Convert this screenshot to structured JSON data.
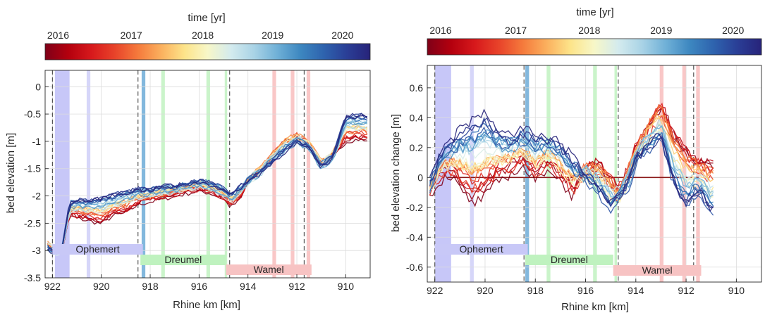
{
  "colorbar": {
    "label": "time [yr]",
    "ticks": [
      "2016",
      "2017",
      "2018",
      "2019",
      "2020"
    ],
    "colors": [
      "#7f0018",
      "#b4000e",
      "#d7191c",
      "#e8432a",
      "#f57a3c",
      "#fbb05e",
      "#fde48a",
      "#f7f7c8",
      "#d4ebee",
      "#a9d3e6",
      "#6fb0d7",
      "#3d87c0",
      "#2e63ae",
      "#2a3e96",
      "#27237a"
    ]
  },
  "chart_data": [
    {
      "type": "line",
      "colorbar_label": "time [yr]",
      "xlabel": "Rhine km [km]",
      "ylabel": "bed elevation [m]",
      "xlim": [
        922.3,
        909.0
      ],
      "ylim": [
        -3.5,
        0.3
      ],
      "xticks": [
        "922",
        "920",
        "918",
        "916",
        "914",
        "912",
        "910"
      ],
      "yticks": [
        "0",
        "-0.5",
        "-1",
        "-1.5",
        "-2",
        "-2.5",
        "-3",
        "-3.5"
      ],
      "grid": true,
      "series_note_years": [
        2016,
        2017,
        2018,
        2019,
        2020
      ],
      "profile_early": {
        "x": [
          922.2,
          921.9,
          921.6,
          921.3,
          921.0,
          920.5,
          920.0,
          919.5,
          919.0,
          918.5,
          918.0,
          917.5,
          917.0,
          916.5,
          916.0,
          915.5,
          915.0,
          914.7,
          914.3,
          914.0,
          913.5,
          913.0,
          912.5,
          912.0,
          911.5,
          911.0,
          910.5,
          910.0,
          909.5,
          909.1
        ],
        "y": [
          -2.85,
          -3.0,
          -2.95,
          -2.3,
          -2.35,
          -2.4,
          -2.45,
          -2.3,
          -2.25,
          -2.1,
          -2.05,
          -2.0,
          -1.95,
          -1.9,
          -1.85,
          -1.9,
          -2.0,
          -2.15,
          -2.0,
          -1.7,
          -1.5,
          -1.2,
          -0.95,
          -0.85,
          -1.0,
          -1.35,
          -1.2,
          -0.95,
          -0.9,
          -0.95
        ]
      },
      "profile_late": {
        "x": [
          922.2,
          921.9,
          921.6,
          921.3,
          921.0,
          920.5,
          920.0,
          919.5,
          919.0,
          918.5,
          918.0,
          917.5,
          917.0,
          916.5,
          916.0,
          915.5,
          915.0,
          914.7,
          914.3,
          914.0,
          913.5,
          913.0,
          912.5,
          912.0,
          911.5,
          911.0,
          910.5,
          910.0
        ],
        "y": [
          -3.0,
          -3.05,
          -2.95,
          -2.15,
          -2.1,
          -2.1,
          -2.05,
          -2.0,
          -1.95,
          -1.9,
          -1.9,
          -1.85,
          -1.85,
          -1.8,
          -1.75,
          -1.8,
          -1.9,
          -2.0,
          -1.85,
          -1.75,
          -1.6,
          -1.4,
          -1.2,
          -1.05,
          -1.15,
          -1.5,
          -1.3,
          -0.55
        ]
      },
      "vertical_bands": [
        {
          "x0": 921.9,
          "x1": 921.3,
          "color": "#b4b4f5"
        },
        {
          "x0": 920.6,
          "x1": 920.45,
          "color": "#c8c8f7"
        },
        {
          "x0": 918.35,
          "x1": 918.2,
          "color": "#5aa0d2"
        },
        {
          "x0": 917.55,
          "x1": 917.4,
          "color": "#b8f0b8"
        },
        {
          "x0": 915.7,
          "x1": 915.55,
          "color": "#b8f0b8"
        },
        {
          "x0": 914.95,
          "x1": 914.85,
          "color": "#b8f0b8"
        },
        {
          "x0": 913.0,
          "x1": 912.85,
          "color": "#f7b4b4"
        },
        {
          "x0": 912.25,
          "x1": 912.1,
          "color": "#f7b4b4"
        },
        {
          "x0": 911.6,
          "x1": 911.45,
          "color": "#f7b4b4"
        }
      ],
      "dashed_lines": [
        922.0,
        918.5,
        914.75,
        911.7
      ],
      "reaches": [
        {
          "label": "Ophemert",
          "x0": 922.0,
          "x1": 918.3,
          "row": 1,
          "color": "#c8c8f7"
        },
        {
          "label": "Dreumel",
          "x0": 918.4,
          "x1": 914.9,
          "row": 2,
          "color": "#bff2bf"
        },
        {
          "label": "Wamel",
          "x0": 914.9,
          "x1": 911.4,
          "row": 3,
          "color": "#f7c3c3"
        }
      ]
    },
    {
      "type": "line",
      "colorbar_label": "time [yr]",
      "xlabel": "Rhine km [km]",
      "ylabel": "bed elevation change [m]",
      "xlim": [
        922.3,
        909.0
      ],
      "ylim": [
        -0.7,
        0.75
      ],
      "xticks": [
        "922",
        "920",
        "918",
        "916",
        "914",
        "912",
        "910"
      ],
      "yticks": [
        "0.6",
        "0.4",
        "0.2",
        "0",
        "-0.2",
        "-0.4",
        "-0.6"
      ],
      "grid": true,
      "profile_early": {
        "x": [
          922.2,
          921.8,
          921.4,
          921.0,
          920.5,
          920.0,
          919.5,
          919.0,
          918.5,
          918.0,
          917.5,
          917.0,
          916.5,
          916.0,
          915.5,
          915.0,
          914.7,
          914.3,
          914.0,
          913.5,
          913.0,
          912.5,
          912.0,
          911.5,
          911.0
        ],
        "y": [
          -0.1,
          0.0,
          0.05,
          -0.05,
          -0.15,
          -0.1,
          0.0,
          0.05,
          0.1,
          0.0,
          0.1,
          0.0,
          -0.1,
          0.05,
          0.1,
          0.0,
          -0.1,
          0.05,
          0.2,
          0.35,
          0.5,
          0.3,
          0.2,
          0.1,
          0.1
        ]
      },
      "profile_late": {
        "x": [
          922.2,
          921.8,
          921.4,
          921.0,
          920.5,
          920.0,
          919.5,
          919.0,
          918.5,
          918.0,
          917.5,
          917.0,
          916.5,
          916.0,
          915.5,
          915.0,
          914.7,
          914.3,
          914.0,
          913.5,
          913.0,
          912.5,
          912.0,
          911.5,
          911.0
        ],
        "y": [
          -0.05,
          0.15,
          0.2,
          0.3,
          0.35,
          0.4,
          0.3,
          0.25,
          0.3,
          0.25,
          0.25,
          0.2,
          0.1,
          0.0,
          -0.1,
          -0.2,
          -0.15,
          -0.05,
          0.1,
          0.2,
          0.25,
          -0.05,
          -0.2,
          -0.1,
          -0.25
        ]
      },
      "zero_line": {
        "x0": 921.5,
        "x1": 911.5,
        "y": 0,
        "color": "#8b1a1a"
      },
      "vertical_bands": [
        {
          "x0": 922.0,
          "x1": 921.35,
          "color": "#b4b4f5"
        },
        {
          "x0": 920.6,
          "x1": 920.45,
          "color": "#c8c8f7"
        },
        {
          "x0": 918.4,
          "x1": 918.25,
          "color": "#5aa0d2"
        },
        {
          "x0": 917.55,
          "x1": 917.4,
          "color": "#b8f0b8"
        },
        {
          "x0": 915.7,
          "x1": 915.55,
          "color": "#b8f0b8"
        },
        {
          "x0": 914.85,
          "x1": 914.75,
          "color": "#b8f0b8"
        },
        {
          "x0": 913.05,
          "x1": 912.9,
          "color": "#f7b4b4"
        },
        {
          "x0": 912.15,
          "x1": 912.0,
          "color": "#f7b4b4"
        },
        {
          "x0": 911.6,
          "x1": 911.45,
          "color": "#f7b4b4"
        }
      ],
      "dashed_lines": [
        922.0,
        918.45,
        914.7,
        911.7
      ],
      "reaches": [
        {
          "label": "Ophemert",
          "x0": 922.0,
          "x1": 918.3,
          "row": 1,
          "color": "#c8c8f7"
        },
        {
          "label": "Dreumel",
          "x0": 918.4,
          "x1": 914.9,
          "row": 2,
          "color": "#bff2bf"
        },
        {
          "label": "Wamel",
          "x0": 914.9,
          "x1": 911.4,
          "row": 3,
          "color": "#f7c3c3"
        }
      ]
    }
  ]
}
